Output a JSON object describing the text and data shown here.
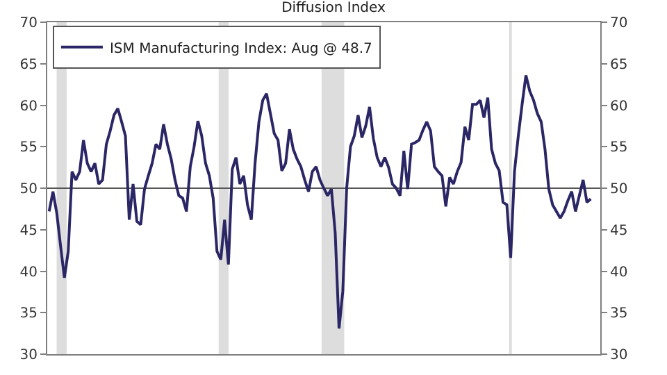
{
  "chart_data": {
    "type": "line",
    "title": "Diffusion Index",
    "categories": [
      null,
      null,
      null,
      null,
      null,
      null,
      null,
      null,
      null,
      null,
      null,
      null,
      null,
      null,
      null,
      null,
      null,
      null,
      null,
      null,
      null,
      null,
      null,
      null,
      null,
      null,
      null,
      null,
      null,
      null,
      null,
      null,
      null,
      null,
      null,
      null,
      null,
      null,
      null,
      null,
      null,
      null,
      null,
      null,
      null,
      null,
      null,
      null,
      null,
      null,
      null,
      null,
      null,
      null,
      null,
      null,
      null,
      null,
      null,
      null,
      null,
      null,
      null,
      null,
      null,
      null,
      null,
      null,
      null,
      null,
      null,
      null,
      null,
      null,
      null,
      null,
      null,
      null,
      null,
      null,
      null,
      null,
      null,
      null,
      null,
      null,
      null,
      null,
      null,
      null,
      null,
      null,
      null,
      null,
      null,
      null,
      null,
      null,
      null,
      null,
      null,
      null,
      null,
      null,
      null,
      null,
      null,
      null,
      null,
      null,
      null,
      null,
      null,
      null,
      null,
      null,
      null,
      null,
      null,
      null,
      null,
      null,
      null,
      null,
      null,
      null,
      null,
      null,
      null,
      null,
      null,
      null,
      null,
      null,
      null,
      null,
      null,
      null,
      null,
      null,
      null,
      null,
      null,
      null,
      null
    ],
    "series": [
      {
        "name": "ISM Manufacturing Index: Aug @ 48.7",
        "color": "#2b2766",
        "values": [
          47.2,
          49.6,
          47.0,
          43.0,
          39.2,
          42.4,
          52.0,
          51.0,
          52.0,
          55.8,
          53.0,
          52.0,
          53.0,
          50.5,
          51.0,
          55.3,
          56.9,
          58.8,
          59.6,
          58.0,
          56.3,
          46.2,
          50.5,
          46.0,
          45.6,
          49.9,
          51.5,
          53.0,
          55.3,
          54.7,
          57.7,
          55.3,
          53.5,
          51.0,
          49.1,
          48.8,
          47.2,
          52.6,
          55.0,
          58.1,
          56.3,
          53.0,
          51.5,
          48.8,
          42.4,
          41.4,
          46.2,
          40.8,
          52.3,
          53.7,
          50.5,
          51.5,
          48.0,
          46.2,
          53.1,
          58.0,
          60.6,
          61.4,
          59.0,
          56.6,
          55.8,
          52.1,
          53.0,
          57.1,
          54.7,
          53.5,
          52.6,
          51.0,
          49.6,
          52.0,
          52.6,
          51.0,
          50.0,
          49.1,
          49.9,
          44.6,
          33.1,
          37.6,
          50.0,
          55.0,
          56.3,
          58.8,
          56.1,
          57.5,
          59.8,
          56.0,
          53.7,
          52.6,
          53.7,
          52.5,
          50.5,
          50.0,
          49.1,
          54.5,
          49.9,
          55.3,
          55.5,
          55.8,
          57.0,
          58.0,
          56.9,
          52.6,
          52.0,
          51.5,
          47.8,
          51.3,
          50.5,
          52.0,
          53.1,
          57.4,
          55.8,
          60.1,
          60.1,
          60.6,
          58.5,
          60.9,
          54.7,
          53.0,
          52.1,
          48.3,
          48.0,
          41.6,
          52.0,
          56.3,
          60.1,
          63.6,
          61.7,
          60.6,
          59.0,
          58.0,
          54.7,
          49.9,
          48.0,
          47.2,
          46.4,
          47.2,
          48.5,
          49.6,
          47.2,
          49.1,
          51.0,
          48.3,
          48.7,
          null,
          null
        ]
      }
    ],
    "ylim": [
      30,
      70
    ],
    "yticks": [
      30,
      35,
      40,
      45,
      50,
      55,
      60,
      65,
      70
    ],
    "y2lim": [
      30,
      70
    ],
    "y2ticks": [
      30,
      35,
      40,
      45,
      50,
      55,
      60,
      65,
      70
    ],
    "ref_lines": [
      {
        "axis": "y",
        "value": 50,
        "color": "#555555"
      }
    ],
    "tick_labels": "y",
    "grid": false,
    "legend": "top left",
    "marker": "none",
    "line_style": "solid"
  }
}
